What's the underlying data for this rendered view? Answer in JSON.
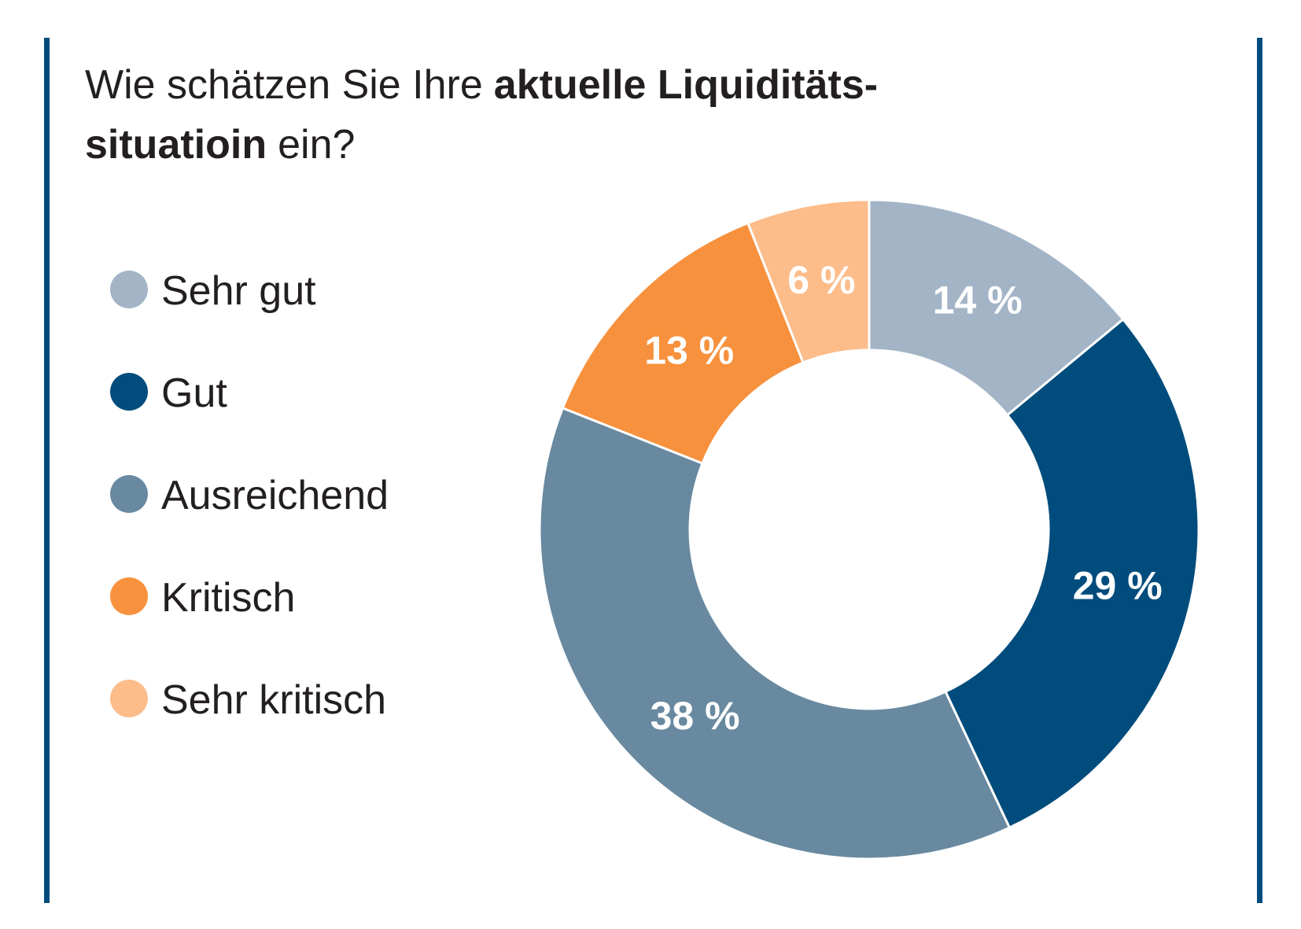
{
  "chart_data": {
    "type": "donut",
    "title_lines": [
      [
        {
          "text": "Wie schätzen Sie Ihre",
          "bold": false
        },
        {
          "text": "aktuelle Liquiditäts-",
          "bold": true
        }
      ],
      [
        {
          "text": "situatioin",
          "bold": true
        },
        {
          "text": "ein?",
          "bold": false
        }
      ]
    ],
    "categories": [
      "Sehr gut",
      "Gut",
      "Ausreichend",
      "Kritisch",
      "Sehr kritisch"
    ],
    "values": [
      14,
      29,
      38,
      13,
      6
    ],
    "value_labels": [
      "14 %",
      "29 %",
      "38 %",
      "13 %",
      "6 %"
    ],
    "colors": [
      "#a3b4c6",
      "#004c7c",
      "#6889a0",
      "#f7913d",
      "#fcbd8b"
    ]
  }
}
